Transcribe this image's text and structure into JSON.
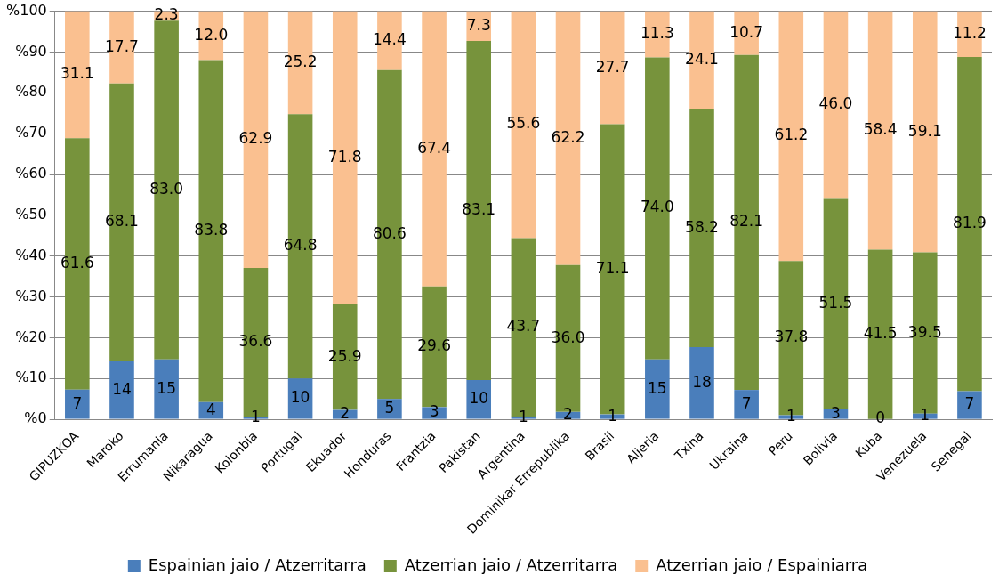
{
  "chart_data": {
    "type": "bar",
    "stacked": true,
    "categories": [
      "GIPUZKOA",
      "Maroko",
      "Errumania",
      "Nikaragua",
      "Kolonbia",
      "Portugal",
      "Ekuador",
      "Honduras",
      "Frantzia",
      "Pakistan",
      "Argentina",
      "Dominikar Errepublika",
      "Brasil",
      "Aljeria",
      "Txina",
      "Ukraina",
      "Peru",
      "Bolivia",
      "Kuba",
      "Venezuela",
      "Senegal"
    ],
    "series": [
      {
        "name": "Espainian jaio / Atzerritarra",
        "color": "#4a7ebb",
        "values": [
          7.3,
          14.2,
          14.7,
          4.2,
          0.5,
          10.0,
          2.3,
          5.0,
          3.0,
          9.6,
          0.7,
          1.8,
          1.2,
          14.7,
          17.7,
          7.2,
          1.0,
          2.5,
          0.1,
          1.4,
          6.9
        ],
        "value_labels": [
          "7",
          "14",
          "15",
          "4",
          "1",
          "10",
          "2",
          "5",
          "3",
          "10",
          "1",
          "2",
          "1",
          "15",
          "18",
          "7",
          "1",
          "3",
          "0",
          "1",
          "7"
        ]
      },
      {
        "name": "Atzerrian jaio / Atzerritarra",
        "color": "#77933c",
        "values": [
          61.6,
          68.1,
          83.0,
          83.8,
          36.6,
          64.8,
          25.9,
          80.6,
          29.6,
          83.1,
          43.7,
          36.0,
          71.1,
          74.0,
          58.2,
          82.1,
          37.8,
          51.5,
          41.5,
          39.5,
          81.9
        ],
        "value_labels": [
          "61.6",
          "68.1",
          "83.0",
          "83.8",
          "36.6",
          "64.8",
          "25.9",
          "80.6",
          "29.6",
          "83.1",
          "43.7",
          "36.0",
          "71.1",
          "74.0",
          "58.2",
          "82.1",
          "37.8",
          "51.5",
          "41.5",
          "39.5",
          "81.9"
        ]
      },
      {
        "name": "Atzerrian jaio / Espainiarra",
        "color": "#fac090",
        "values": [
          31.1,
          17.7,
          2.3,
          12.0,
          62.9,
          25.2,
          71.8,
          14.4,
          67.4,
          7.3,
          55.6,
          62.2,
          27.7,
          11.3,
          24.1,
          10.7,
          61.2,
          46.0,
          58.4,
          59.1,
          11.2
        ],
        "value_labels": [
          "31.1",
          "17.7",
          "2.3",
          "12.0",
          "62.9",
          "25.2",
          "71.8",
          "14.4",
          "67.4",
          "7.3",
          "55.6",
          "62.2",
          "27.7",
          "11.3",
          "24.1",
          "10.7",
          "61.2",
          "46.0",
          "58.4",
          "59.1",
          "11.2"
        ]
      }
    ],
    "ylim": [
      0,
      100
    ],
    "yticks": [
      {
        "value": 0,
        "label": "%0"
      },
      {
        "value": 10,
        "label": "%10"
      },
      {
        "value": 20,
        "label": "%20"
      },
      {
        "value": 30,
        "label": "%30"
      },
      {
        "value": 40,
        "label": "%40"
      },
      {
        "value": 50,
        "label": "%50"
      },
      {
        "value": 60,
        "label": "%60"
      },
      {
        "value": 70,
        "label": "%70"
      },
      {
        "value": 80,
        "label": "%80"
      },
      {
        "value": 90,
        "label": "%90"
      },
      {
        "value": 100,
        "label": "%100"
      }
    ],
    "grid": "y",
    "legend": "bottom"
  }
}
